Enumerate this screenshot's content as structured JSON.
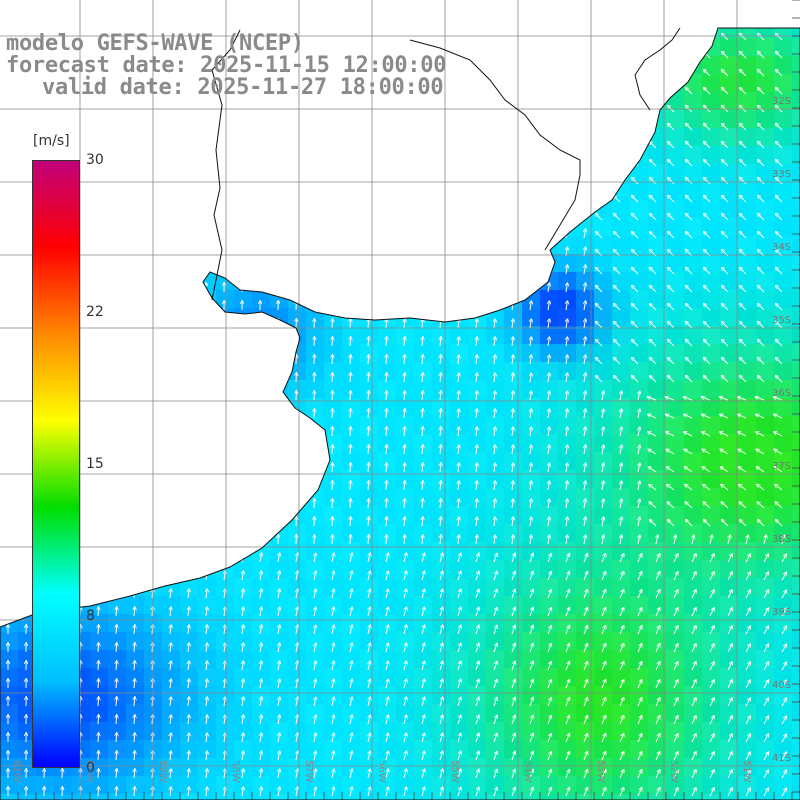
{
  "header": {
    "model": "modelo GEFS-WAVE (NCEP)",
    "forecast": "forecast date: 2025-11-15 12:00:00",
    "valid": "valid date: 2025-11-27 18:00:00"
  },
  "colorbar": {
    "unit": "[m/s]",
    "ticks": [
      "30",
      "22",
      "15",
      "8",
      "0"
    ],
    "range": [
      0,
      30
    ],
    "stops": [
      "#0000ff",
      "#00bfff",
      "#00ffff",
      "#00dd00",
      "#ffff00",
      "#ff8800",
      "#ff0000",
      "#c0007a"
    ]
  },
  "map": {
    "lat_labels": [
      "32S",
      "33S",
      "34S",
      "35S",
      "36S",
      "37S",
      "38S",
      "39S",
      "40S",
      "41S"
    ],
    "lon_labels": [
      "61W",
      "60W",
      "59W",
      "58W",
      "57W",
      "56W",
      "55W",
      "54W",
      "53W",
      "52W",
      "51W"
    ],
    "land_color": "#ffffff",
    "grid_color": "#888888",
    "arrow_color": "#ffffff"
  }
}
